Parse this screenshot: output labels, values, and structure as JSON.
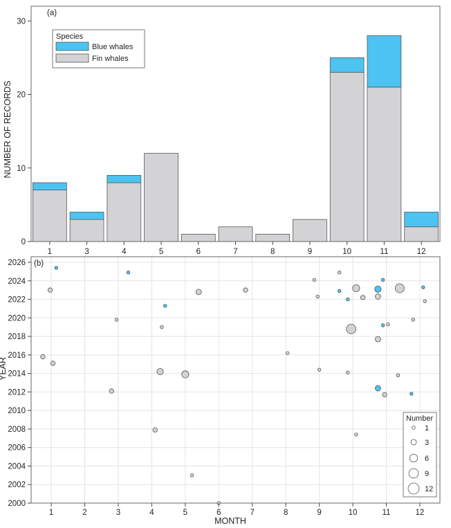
{
  "colors": {
    "blue": "#4cc3f0",
    "fin": "#d3d3d6",
    "bar_stroke": "#555555",
    "bubble_stroke": "#555555"
  },
  "chart_data": [
    {
      "type": "bar",
      "panel_label": "(a)",
      "stacked": true,
      "categories": [
        "1",
        "3",
        "4",
        "5",
        "6",
        "7",
        "8",
        "9",
        "10",
        "11",
        "12"
      ],
      "series": [
        {
          "name": "Fin whales",
          "color": "#d3d3d6",
          "values": [
            7,
            3,
            8,
            12,
            1,
            2,
            1,
            3,
            23,
            21,
            2
          ]
        },
        {
          "name": "Blue whales",
          "color": "#4cc3f0",
          "values": [
            1,
            1,
            1,
            0,
            0,
            0,
            0,
            0,
            2,
            7,
            2
          ]
        }
      ],
      "title": "",
      "xlabel": "",
      "ylabel": "NUMBER OF RECORDS",
      "ylim": [
        0,
        32
      ],
      "yticks": [
        0,
        10,
        20,
        30
      ],
      "grid": false,
      "legend": {
        "title": "Species",
        "placement": "top-left",
        "entries": [
          "Blue whales",
          "Fin whales"
        ]
      }
    },
    {
      "type": "scatter",
      "panel_label": "(b)",
      "title": "",
      "xlabel": "MONTH",
      "ylabel": "YEAR",
      "xlim": [
        0.4,
        12.6
      ],
      "ylim": [
        2000,
        2026.6
      ],
      "xticks": [
        1,
        2,
        3,
        4,
        5,
        6,
        7,
        8,
        9,
        10,
        11,
        12
      ],
      "yticks": [
        2000,
        2002,
        2004,
        2006,
        2008,
        2010,
        2012,
        2014,
        2016,
        2018,
        2020,
        2022,
        2024,
        2026
      ],
      "grid": true,
      "size_legend": {
        "title": "Number",
        "placement": "bottom-right",
        "values": [
          1,
          3,
          6,
          9,
          12
        ]
      },
      "series": [
        {
          "name": "Fin whales",
          "color": "#d3d3d6",
          "points": [
            {
              "x": 0.97,
              "y": 2023.0,
              "n": 2
            },
            {
              "x": 0.75,
              "y": 2015.8,
              "n": 2
            },
            {
              "x": 1.05,
              "y": 2015.1,
              "n": 2
            },
            {
              "x": 2.95,
              "y": 2019.8,
              "n": 1
            },
            {
              "x": 2.8,
              "y": 2012.1,
              "n": 2
            },
            {
              "x": 4.3,
              "y": 2019.0,
              "n": 1
            },
            {
              "x": 4.25,
              "y": 2014.2,
              "n": 4
            },
            {
              "x": 4.1,
              "y": 2007.9,
              "n": 2
            },
            {
              "x": 5.4,
              "y": 2022.8,
              "n": 3
            },
            {
              "x": 5.0,
              "y": 2013.9,
              "n": 5
            },
            {
              "x": 5.2,
              "y": 2003.0,
              "n": 1
            },
            {
              "x": 6.0,
              "y": 2000.0,
              "n": 1
            },
            {
              "x": 6.8,
              "y": 2023.0,
              "n": 2
            },
            {
              "x": 8.05,
              "y": 2016.2,
              "n": 1
            },
            {
              "x": 8.85,
              "y": 2024.1,
              "n": 1
            },
            {
              "x": 8.95,
              "y": 2022.3,
              "n": 1
            },
            {
              "x": 9.0,
              "y": 2014.4,
              "n": 1
            },
            {
              "x": 9.6,
              "y": 2024.9,
              "n": 1
            },
            {
              "x": 9.85,
              "y": 2014.1,
              "n": 1
            },
            {
              "x": 10.1,
              "y": 2023.2,
              "n": 5
            },
            {
              "x": 10.3,
              "y": 2022.2,
              "n": 2
            },
            {
              "x": 9.95,
              "y": 2018.8,
              "n": 9
            },
            {
              "x": 10.1,
              "y": 2007.4,
              "n": 1
            },
            {
              "x": 10.75,
              "y": 2022.3,
              "n": 3
            },
            {
              "x": 10.75,
              "y": 2017.7,
              "n": 3
            },
            {
              "x": 10.95,
              "y": 2011.7,
              "n": 2
            },
            {
              "x": 11.05,
              "y": 2019.3,
              "n": 1
            },
            {
              "x": 11.4,
              "y": 2023.2,
              "n": 8
            },
            {
              "x": 11.35,
              "y": 2013.8,
              "n": 1
            },
            {
              "x": 11.8,
              "y": 2019.8,
              "n": 1
            },
            {
              "x": 12.15,
              "y": 2021.8,
              "n": 1
            }
          ]
        },
        {
          "name": "Blue whales",
          "color": "#4cc3f0",
          "points": [
            {
              "x": 1.15,
              "y": 2025.4,
              "n": 1
            },
            {
              "x": 3.3,
              "y": 2024.9,
              "n": 1
            },
            {
              "x": 4.4,
              "y": 2021.3,
              "n": 1
            },
            {
              "x": 9.6,
              "y": 2022.9,
              "n": 1
            },
            {
              "x": 9.85,
              "y": 2022.0,
              "n": 1
            },
            {
              "x": 10.75,
              "y": 2023.1,
              "n": 4
            },
            {
              "x": 10.9,
              "y": 2024.1,
              "n": 1
            },
            {
              "x": 10.9,
              "y": 2019.2,
              "n": 1
            },
            {
              "x": 10.75,
              "y": 2012.4,
              "n": 3
            },
            {
              "x": 11.75,
              "y": 2011.8,
              "n": 1
            },
            {
              "x": 12.1,
              "y": 2023.3,
              "n": 1
            }
          ]
        }
      ]
    }
  ]
}
